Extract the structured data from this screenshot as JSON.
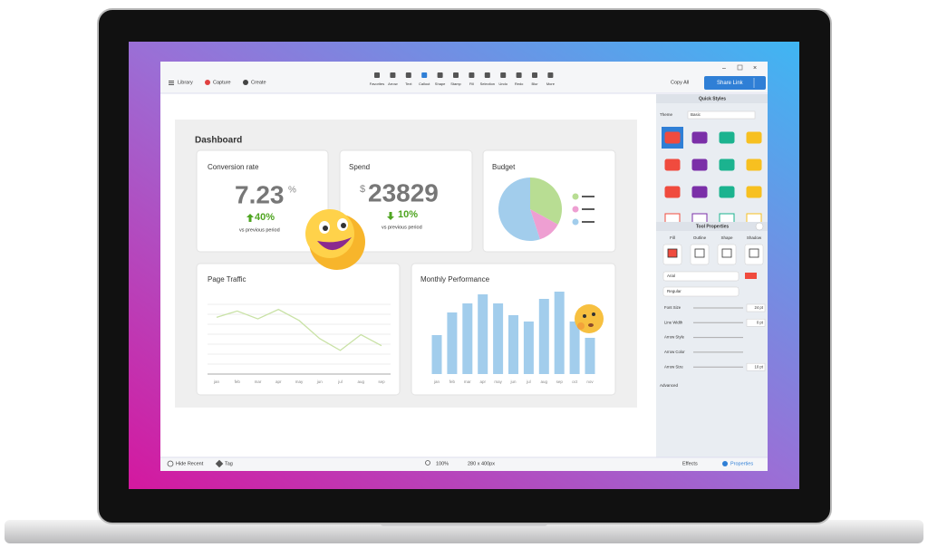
{
  "toolbar": {
    "library": "Library",
    "capture": "Capture",
    "create": "Create",
    "tools": [
      "Favorites",
      "Arrow",
      "Text",
      "Callout",
      "Shape",
      "Stamp",
      "Fill",
      "Selection",
      "Undo",
      "Redo",
      "Blur",
      "More"
    ],
    "copy_all": "Copy All",
    "share_link": "Share Link"
  },
  "dashboard": {
    "title": "Dashboard",
    "conversion": {
      "title": "Conversion rate",
      "value": "7.23",
      "unit": "%",
      "change": "40%",
      "note": "vs previous period"
    },
    "spend": {
      "title": "Spend",
      "currency": "$",
      "value": "23829",
      "change": "10%",
      "note": "vs previous period"
    },
    "budget": {
      "title": "Budget",
      "type": "pie",
      "values": [
        33,
        12,
        55
      ],
      "colors": [
        "#b8dd93",
        "#ee9fd2",
        "#a2cdec"
      ]
    },
    "page_traffic": {
      "title": "Page Traffic",
      "type": "line",
      "categories": [
        "jan",
        "feb",
        "mar",
        "apr",
        "may",
        "jun",
        "jul",
        "aug",
        "sep"
      ],
      "values": [
        72,
        80,
        70,
        82,
        68,
        45,
        30,
        50,
        36
      ],
      "color": "#c9e2a6"
    },
    "monthly": {
      "title": "Monthly Performance",
      "type": "bar",
      "categories": [
        "jan",
        "feb",
        "mar",
        "apr",
        "may",
        "jun",
        "jul",
        "aug",
        "sep",
        "oct",
        "nov"
      ],
      "values": [
        43,
        68,
        78,
        88,
        78,
        65,
        58,
        83,
        91,
        58,
        40
      ],
      "color": "#a2cdec"
    }
  },
  "panel": {
    "quick_styles": "Quick Styles",
    "theme_label": "Theme",
    "theme": "Basic",
    "tool_properties": "Tool Properties",
    "tabs": [
      "Fill",
      "Outline",
      "Shape",
      "Shadow"
    ],
    "font": "Arial",
    "weight": "Regular",
    "rows": [
      {
        "label": "Font Size",
        "value": "24 pt"
      },
      {
        "label": "Line Width",
        "value": "0 pt"
      },
      {
        "label": "Arrow Style"
      },
      {
        "label": "Arrow Color"
      },
      {
        "label": "Arrow Size",
        "value": "10 pt"
      }
    ],
    "advanced": "Advanced"
  },
  "status": {
    "hide_recent": "Hide Recent",
    "tag": "Tag",
    "zoom": "100%",
    "size": "280 x 400px",
    "effects": "Effects",
    "properties": "Properties"
  }
}
